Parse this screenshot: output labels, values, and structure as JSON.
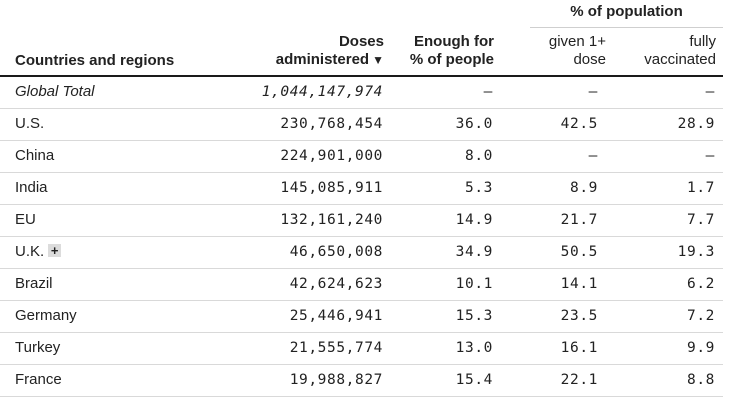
{
  "table": {
    "group_header": "% of population",
    "headers": {
      "country": "Countries and regions",
      "doses_line1": "Doses",
      "doses_line2": "administered",
      "doses_sort_icon": "▼",
      "enough_line1": "Enough for",
      "enough_line2": "% of people",
      "given_line1": "given 1+",
      "given_line2": "dose",
      "fully_line1": "fully",
      "fully_line2": "vaccinated"
    },
    "rows": [
      {
        "name": "Global Total",
        "doses": "1,044,147,974",
        "enough": "–",
        "given": "–",
        "fully": "–",
        "italic": true,
        "expandable": false
      },
      {
        "name": "U.S.",
        "doses": "230,768,454",
        "enough": "36.0",
        "given": "42.5",
        "fully": "28.9",
        "italic": false,
        "expandable": false
      },
      {
        "name": "China",
        "doses": "224,901,000",
        "enough": "8.0",
        "given": "–",
        "fully": "–",
        "italic": false,
        "expandable": false
      },
      {
        "name": "India",
        "doses": "145,085,911",
        "enough": "5.3",
        "given": "8.9",
        "fully": "1.7",
        "italic": false,
        "expandable": false
      },
      {
        "name": "EU",
        "doses": "132,161,240",
        "enough": "14.9",
        "given": "21.7",
        "fully": "7.7",
        "italic": false,
        "expandable": false
      },
      {
        "name": "U.K.",
        "doses": "46,650,008",
        "enough": "34.9",
        "given": "50.5",
        "fully": "19.3",
        "italic": false,
        "expandable": true
      },
      {
        "name": "Brazil",
        "doses": "42,624,623",
        "enough": "10.1",
        "given": "14.1",
        "fully": "6.2",
        "italic": false,
        "expandable": false
      },
      {
        "name": "Germany",
        "doses": "25,446,941",
        "enough": "15.3",
        "given": "23.5",
        "fully": "7.2",
        "italic": false,
        "expandable": false
      },
      {
        "name": "Turkey",
        "doses": "21,555,774",
        "enough": "13.0",
        "given": "16.1",
        "fully": "9.9",
        "italic": false,
        "expandable": false
      },
      {
        "name": "France",
        "doses": "19,988,827",
        "enough": "15.4",
        "given": "22.1",
        "fully": "8.8",
        "italic": false,
        "expandable": false
      }
    ],
    "expand_icon": "+"
  }
}
